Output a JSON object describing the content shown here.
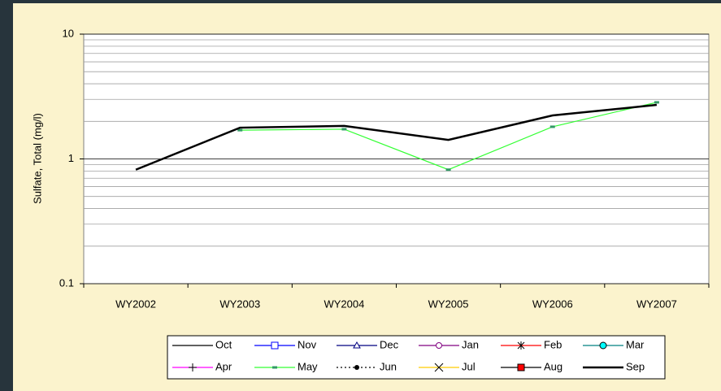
{
  "chart_data": {
    "type": "line",
    "y_label": "Sulfate, Total (mg/l)",
    "log_scale": true,
    "grid": true,
    "minor_grid": true,
    "categories": [
      "WY2002",
      "WY2003",
      "WY2004",
      "WY2005",
      "WY2006",
      "WY2007"
    ],
    "ylim": [
      0.1,
      10
    ],
    "yticks": [
      0.1,
      1,
      10
    ],
    "legend": "bottom",
    "series": [
      {
        "name": "Oct",
        "color": "#000000",
        "marker": "none",
        "line": "solid",
        "values": [
          null,
          null,
          null,
          null,
          null,
          null
        ]
      },
      {
        "name": "Nov",
        "color": "#0000ff",
        "marker": "square",
        "line": "solid",
        "values": [
          null,
          null,
          null,
          null,
          null,
          null
        ]
      },
      {
        "name": "Dec",
        "color": "#000080",
        "marker": "triangle",
        "line": "solid",
        "values": [
          null,
          null,
          null,
          null,
          null,
          null
        ]
      },
      {
        "name": "Jan",
        "color": "#800080",
        "marker": "circle",
        "line": "solid",
        "values": [
          null,
          null,
          null,
          null,
          null,
          null
        ]
      },
      {
        "name": "Feb",
        "color": "#ff0000",
        "marker": "star",
        "line": "solid",
        "values": [
          null,
          null,
          null,
          null,
          null,
          null
        ]
      },
      {
        "name": "Mar",
        "color": "#008080",
        "marker": "circle-cyan",
        "line": "solid",
        "values": [
          null,
          null,
          null,
          null,
          null,
          null
        ]
      },
      {
        "name": "Apr",
        "color": "#ff00ff",
        "marker": "plus",
        "line": "solid",
        "values": [
          null,
          null,
          null,
          null,
          null,
          null
        ]
      },
      {
        "name": "May",
        "color": "#33ff33",
        "marker": "dash",
        "line": "solid",
        "values": [
          null,
          1.7,
          1.73,
          0.82,
          1.81,
          2.84
        ]
      },
      {
        "name": "Jun",
        "color": "#000000",
        "marker": "dot",
        "line": "dotted",
        "values": [
          null,
          null,
          null,
          null,
          null,
          null
        ]
      },
      {
        "name": "Jul",
        "color": "#ffcc00",
        "marker": "x",
        "line": "solid",
        "values": [
          null,
          null,
          null,
          null,
          null,
          null
        ]
      },
      {
        "name": "Aug",
        "color": "#000000",
        "marker": "square-red",
        "line": "solid",
        "values": [
          null,
          null,
          null,
          null,
          null,
          null
        ]
      },
      {
        "name": "Sep",
        "color": "#000000",
        "marker": "none",
        "line": "thick",
        "values": [
          0.82,
          1.78,
          1.84,
          1.42,
          2.23,
          2.71
        ]
      }
    ]
  }
}
